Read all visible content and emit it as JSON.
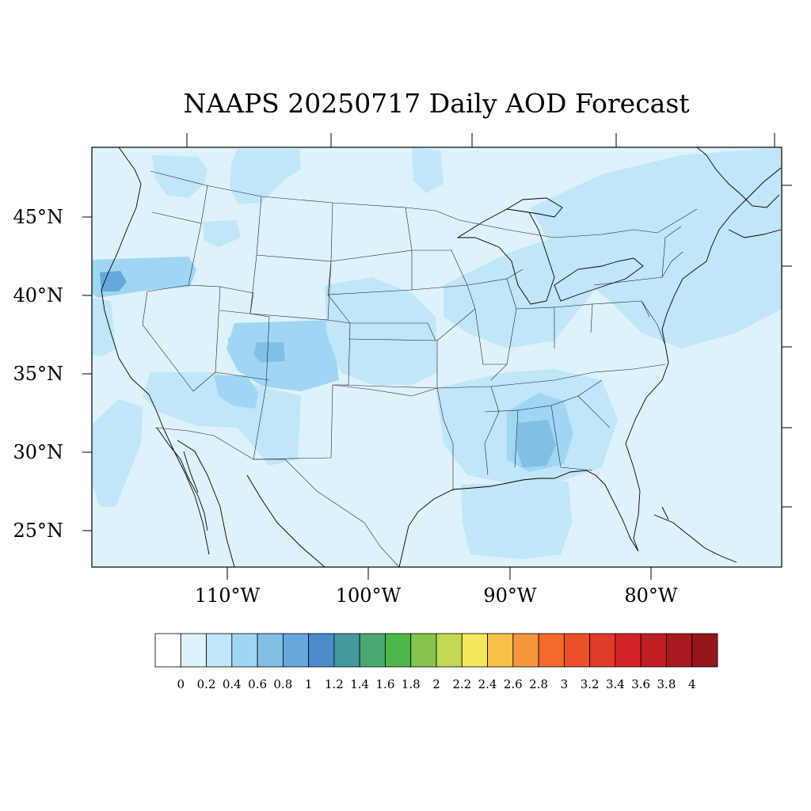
{
  "title": "NAAPS 20250717 Daily AOD Forecast",
  "lat_labels": [
    "45°N",
    "40°N",
    "35°N",
    "30°N",
    "25°N"
  ],
  "lon_labels": [
    "110°W",
    "100°W",
    "90°W",
    "80°W"
  ],
  "colorbar": {
    "tick_labels": [
      "0",
      "0.2",
      "0.4",
      "0.6",
      "0.8",
      "1",
      "1.2",
      "1.4",
      "1.6",
      "1.8",
      "2",
      "2.2",
      "2.4",
      "2.6",
      "2.8",
      "3",
      "3.2",
      "3.4",
      "3.6",
      "3.8",
      "4"
    ],
    "colors": [
      "#ffffff",
      "#ddf2fb",
      "#bfe6f9",
      "#9fd6f3",
      "#82bfe6",
      "#66a8dc",
      "#4b8bc9",
      "#479a9b",
      "#4aa870",
      "#4cb84a",
      "#86c44d",
      "#c4d856",
      "#f4e85c",
      "#f8c048",
      "#f7963c",
      "#f36a2a",
      "#ea5028",
      "#e03a28",
      "#d42328",
      "#bf1e25",
      "#a81a20",
      "#931619"
    ]
  },
  "map": {
    "background_color": "#ddf2fb",
    "aod_regions": [
      {
        "name": "pacific-northwest-haze",
        "value": 0.3,
        "color": "#bfe6f9"
      },
      {
        "name": "northern-california-plume",
        "value": 0.6,
        "color": "#9fd6f3"
      },
      {
        "name": "northern-california-core",
        "value": 0.8,
        "color": "#66a8dc"
      },
      {
        "name": "montana-haze",
        "value": 0.3,
        "color": "#bfe6f9"
      },
      {
        "name": "great-basin-haze",
        "value": 0.3,
        "color": "#bfe6f9"
      },
      {
        "name": "colorado-plume",
        "value": 0.4,
        "color": "#9fd6f3"
      },
      {
        "name": "colorado-core",
        "value": 0.7,
        "color": "#82bfe6"
      },
      {
        "name": "arizona-haze",
        "value": 0.3,
        "color": "#bfe6f9"
      },
      {
        "name": "arizona-plume",
        "value": 0.5,
        "color": "#9fd6f3"
      },
      {
        "name": "central-plains-haze",
        "value": 0.3,
        "color": "#bfe6f9"
      },
      {
        "name": "upper-midwest-haze",
        "value": 0.3,
        "color": "#bfe6f9"
      },
      {
        "name": "northeast-plume",
        "value": 0.5,
        "color": "#9fd6f3"
      },
      {
        "name": "atlantic-haze",
        "value": 0.3,
        "color": "#bfe6f9"
      },
      {
        "name": "southeast-haze",
        "value": 0.3,
        "color": "#bfe6f9"
      },
      {
        "name": "alabama-plume",
        "value": 0.5,
        "color": "#9fd6f3"
      },
      {
        "name": "mississippi-core",
        "value": 0.7,
        "color": "#82bfe6"
      },
      {
        "name": "gulf-haze",
        "value": 0.3,
        "color": "#bfe6f9"
      },
      {
        "name": "baja-haze",
        "value": 0.3,
        "color": "#bfe6f9"
      }
    ]
  }
}
